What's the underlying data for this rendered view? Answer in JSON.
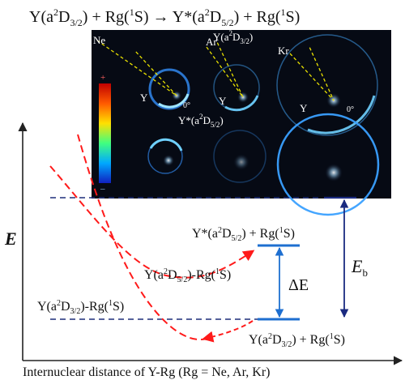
{
  "title": {
    "y_base": "Y(a",
    "y_sup": "2",
    "y_D": "D",
    "y_sub": "3/2",
    "plus_rg1": ") + Rg(",
    "rg_sup": "1",
    "rg_S": "S) ",
    "arrow": "→",
    "ystar": " Y*(a",
    "ystar_sup": "2",
    "ystar_D": "D",
    "ystar_sub": "5/2",
    "plus_rg2": ") + Rg(",
    "rg2_sup": "1",
    "rg2_S": "S)"
  },
  "image_panel": {
    "labels": {
      "ne": "Ne",
      "ar": "Ar",
      "kr": "Kr",
      "y1": "Y",
      "y2": "Y",
      "y3": "Y",
      "zero1": "0°",
      "zero2": "0°",
      "ya2d32_a": "Y(a",
      "ya2d32_sup": "2",
      "ya2d32_D": "D",
      "ya2d32_sub": "3/2",
      "ya2d32_close": ")",
      "ystar_a": "Y*(a",
      "ystar_sup": "2",
      "ystar_D": "D",
      "ystar_sub": "5/2",
      "ystar_close": ")",
      "colorbar_plus": "+",
      "colorbar_minus": "–"
    },
    "colors": {
      "background": "#060a14",
      "ring": "#3aa0ff",
      "beam": "#e8e000"
    }
  },
  "energy_diagram": {
    "y_axis_label": "E",
    "x_axis_label": "Internuclear distance of Y-Rg (Rg = Ne, Ar, Kr)",
    "upper_state": {
      "a": "Y*(a",
      "sup": "2",
      "D": "D",
      "sub": "5/2",
      "rest": ") + Rg(",
      "sup2": "1",
      "S": "S)"
    },
    "lower_state": {
      "a": "Y(a",
      "sup": "2",
      "D": "D",
      "sub": "3/2",
      "rest": ") + Rg(",
      "sup2": "1",
      "S": "S)"
    },
    "complex_upper": {
      "a": "Y(a",
      "sup": "2",
      "D": "D",
      "sub": "5/2",
      "rest": ")-Rg(",
      "sup2": "1",
      "S": "S)"
    },
    "complex_lower": {
      "a": "Y(a",
      "sup": "2",
      "D": "D",
      "sub": "3/2",
      "rest": ")-Rg(",
      "sup2": "1",
      "S": "S)"
    },
    "delta_e": "ΔE",
    "eb": "E",
    "eb_sub": "b",
    "colors": {
      "curves": "#ff1a1a",
      "levels": "#1e6fd0",
      "dashed": "#1f2f7a",
      "eb_arrow": "#1a2a80"
    }
  }
}
